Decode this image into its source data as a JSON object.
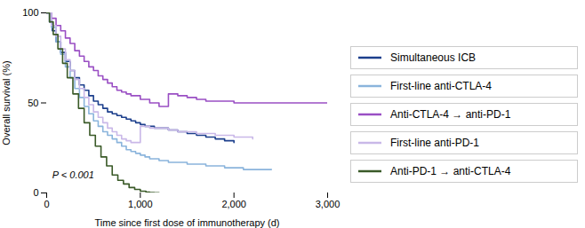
{
  "chart_data": {
    "type": "step",
    "xlabel": "Time since first dose of immunotherapy (d)",
    "ylabel": "Overall survival (%)",
    "xlim": [
      0,
      3000
    ],
    "ylim": [
      0,
      100
    ],
    "xticks": [
      0,
      {
        "value": 1000,
        "label": "1,000"
      },
      {
        "value": 2000,
        "label": "2,000"
      },
      {
        "value": 3000,
        "label": "3,000"
      }
    ],
    "yticks": [
      0,
      50,
      100
    ],
    "grid": false,
    "legend": "right",
    "annotations": [
      {
        "text": "P < 0.001",
        "x": 60,
        "y": 8
      }
    ],
    "series": [
      {
        "name": "Simultaneous ICB",
        "color": "#1c3f8c",
        "x": [
          0,
          30,
          60,
          100,
          150,
          200,
          250,
          300,
          350,
          400,
          450,
          500,
          550,
          600,
          650,
          700,
          750,
          800,
          850,
          900,
          950,
          1000,
          1050,
          1100,
          1150,
          1200,
          1300,
          1400,
          1500,
          1600,
          1700,
          1800,
          1900,
          2000
        ],
        "values": [
          100,
          95,
          90,
          84,
          78,
          73,
          68,
          64,
          60,
          57,
          54,
          51,
          49,
          47,
          45,
          44,
          43,
          42,
          41,
          40,
          39,
          38,
          37,
          37,
          36,
          36,
          35,
          34,
          33,
          32,
          31,
          30,
          29,
          28
        ]
      },
      {
        "name": "First-line anti-CTLA-4",
        "color": "#8ab4dc",
        "x": [
          0,
          50,
          100,
          150,
          200,
          250,
          300,
          350,
          400,
          450,
          500,
          550,
          600,
          650,
          700,
          750,
          800,
          850,
          900,
          950,
          1000,
          1050,
          1100,
          1200,
          1300,
          1400,
          1500,
          1600,
          1700,
          1800,
          1900,
          2000,
          2100,
          2200,
          2400
        ],
        "values": [
          100,
          92,
          84,
          77,
          70,
          64,
          58,
          53,
          48,
          44,
          40,
          37,
          34,
          32,
          30,
          28,
          26,
          24,
          23,
          22,
          21,
          20,
          19,
          18,
          17,
          17,
          16,
          16,
          15,
          15,
          14,
          14,
          13,
          13,
          13
        ]
      },
      {
        "name": "Anti-CTLA-4 → anti-PD-1",
        "color": "#9a4fc4",
        "x": [
          0,
          50,
          100,
          150,
          200,
          250,
          300,
          350,
          400,
          450,
          500,
          550,
          600,
          650,
          700,
          750,
          800,
          850,
          900,
          1000,
          1100,
          1200,
          1300,
          1400,
          1500,
          1600,
          1700,
          1800,
          1900,
          2000,
          2100,
          2200,
          2300,
          2400,
          2500,
          2600,
          2700,
          2800,
          3000
        ],
        "values": [
          100,
          97,
          93,
          90,
          86,
          83,
          79,
          76,
          73,
          70,
          68,
          65,
          63,
          61,
          59,
          57,
          56,
          55,
          54,
          52,
          50,
          48,
          55,
          54,
          53,
          52,
          51,
          51,
          51,
          50,
          50,
          50,
          50,
          50,
          50,
          50,
          50,
          50,
          50
        ]
      },
      {
        "name": "First-line anti-PD-1",
        "color": "#c9b8e8",
        "x": [
          0,
          50,
          100,
          150,
          200,
          250,
          300,
          350,
          400,
          450,
          500,
          550,
          600,
          650,
          700,
          750,
          800,
          850,
          900,
          1000,
          1100,
          1200,
          1300,
          1400,
          1500,
          1600,
          1700,
          1800,
          1900,
          2000,
          2100,
          2200
        ],
        "values": [
          100,
          93,
          87,
          80,
          74,
          68,
          63,
          58,
          53,
          49,
          45,
          42,
          39,
          36,
          34,
          32,
          30,
          29,
          28,
          37,
          36,
          36,
          35,
          34,
          34,
          33,
          33,
          32,
          32,
          31,
          31,
          30
        ]
      },
      {
        "name": "Anti-PD-1 → anti-CTLA-4",
        "color": "#3a5a28",
        "x": [
          0,
          30,
          70,
          120,
          170,
          220,
          280,
          340,
          400,
          460,
          520,
          580,
          640,
          700,
          760,
          820,
          880,
          940,
          1000,
          1060,
          1100,
          1150,
          1200
        ],
        "values": [
          100,
          95,
          88,
          80,
          72,
          64,
          55,
          47,
          39,
          32,
          26,
          20,
          15,
          10,
          7,
          5,
          3,
          2,
          1,
          0.5,
          0.2,
          0.1,
          0
        ]
      }
    ]
  }
}
